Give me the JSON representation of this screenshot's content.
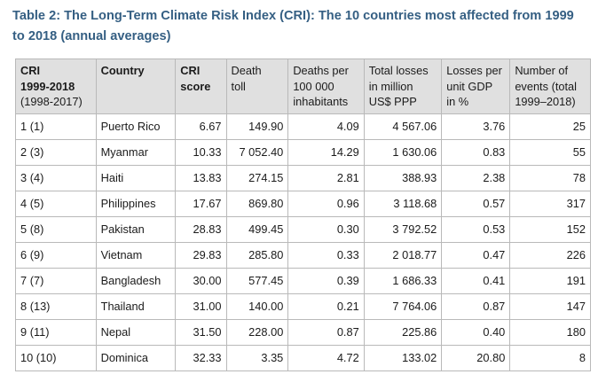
{
  "caption": "Table 2: The Long-Term Climate Risk Index (CRI): The 10 countries most affected from 1999 to 2018 (annual averages)",
  "headers": {
    "cri": [
      "CRI",
      "1999-2018"
    ],
    "cri_sub": "(1998-2017)",
    "country": "Country",
    "cri_score": [
      "CRI",
      "score"
    ],
    "death_toll": [
      "Death",
      "toll"
    ],
    "deaths_per": [
      "Deaths per",
      "100 000",
      "inhabitants"
    ],
    "total_losses": [
      "Total losses",
      "in million",
      "US$ PPP"
    ],
    "losses_gdp": [
      "Losses per",
      "unit GDP",
      "in %"
    ],
    "events": [
      "Number of",
      "events (total",
      "1999–2018)"
    ]
  },
  "rows": [
    {
      "rank": "1",
      "prev": "(1)",
      "country": "Puerto Rico",
      "score": "6.67",
      "deaths": "149.90",
      "per100k": "4.09",
      "losses": "4 567.06",
      "gdp": "3.76",
      "events": "25"
    },
    {
      "rank": "2",
      "prev": "(3)",
      "country": "Myanmar",
      "score": "10.33",
      "deaths": "7 052.40",
      "per100k": "14.29",
      "losses": "1 630.06",
      "gdp": "0.83",
      "events": "55"
    },
    {
      "rank": "3",
      "prev": "(4)",
      "country": "Haiti",
      "score": "13.83",
      "deaths": "274.15",
      "per100k": "2.81",
      "losses": "388.93",
      "gdp": "2.38",
      "events": "78"
    },
    {
      "rank": "4",
      "prev": "(5)",
      "country": "Philippines",
      "score": "17.67",
      "deaths": "869.80",
      "per100k": "0.96",
      "losses": "3 118.68",
      "gdp": "0.57",
      "events": "317"
    },
    {
      "rank": "5",
      "prev": "(8)",
      "country": "Pakistan",
      "score": "28.83",
      "deaths": "499.45",
      "per100k": "0.30",
      "losses": "3 792.52",
      "gdp": "0.53",
      "events": "152"
    },
    {
      "rank": "6",
      "prev": "(9)",
      "country": "Vietnam",
      "score": "29.83",
      "deaths": "285.80",
      "per100k": "0.33",
      "losses": "2 018.77",
      "gdp": "0.47",
      "events": "226"
    },
    {
      "rank": "7",
      "prev": "(7)",
      "country": "Bangladesh",
      "score": "30.00",
      "deaths": "577.45",
      "per100k": "0.39",
      "losses": "1 686.33",
      "gdp": "0.41",
      "events": "191"
    },
    {
      "rank": "8",
      "prev": "(13)",
      "country": "Thailand",
      "score": "31.00",
      "deaths": "140.00",
      "per100k": "0.21",
      "losses": "7 764.06",
      "gdp": "0.87",
      "events": "147"
    },
    {
      "rank": "9",
      "prev": "(11)",
      "country": "Nepal",
      "score": "31.50",
      "deaths": "228.00",
      "per100k": "0.87",
      "losses": "225.86",
      "gdp": "0.40",
      "events": "180"
    },
    {
      "rank": "10",
      "prev": "(10)",
      "country": "Dominica",
      "score": "32.33",
      "deaths": "3.35",
      "per100k": "4.72",
      "losses": "133.02",
      "gdp": "20.80",
      "events": "8"
    }
  ]
}
